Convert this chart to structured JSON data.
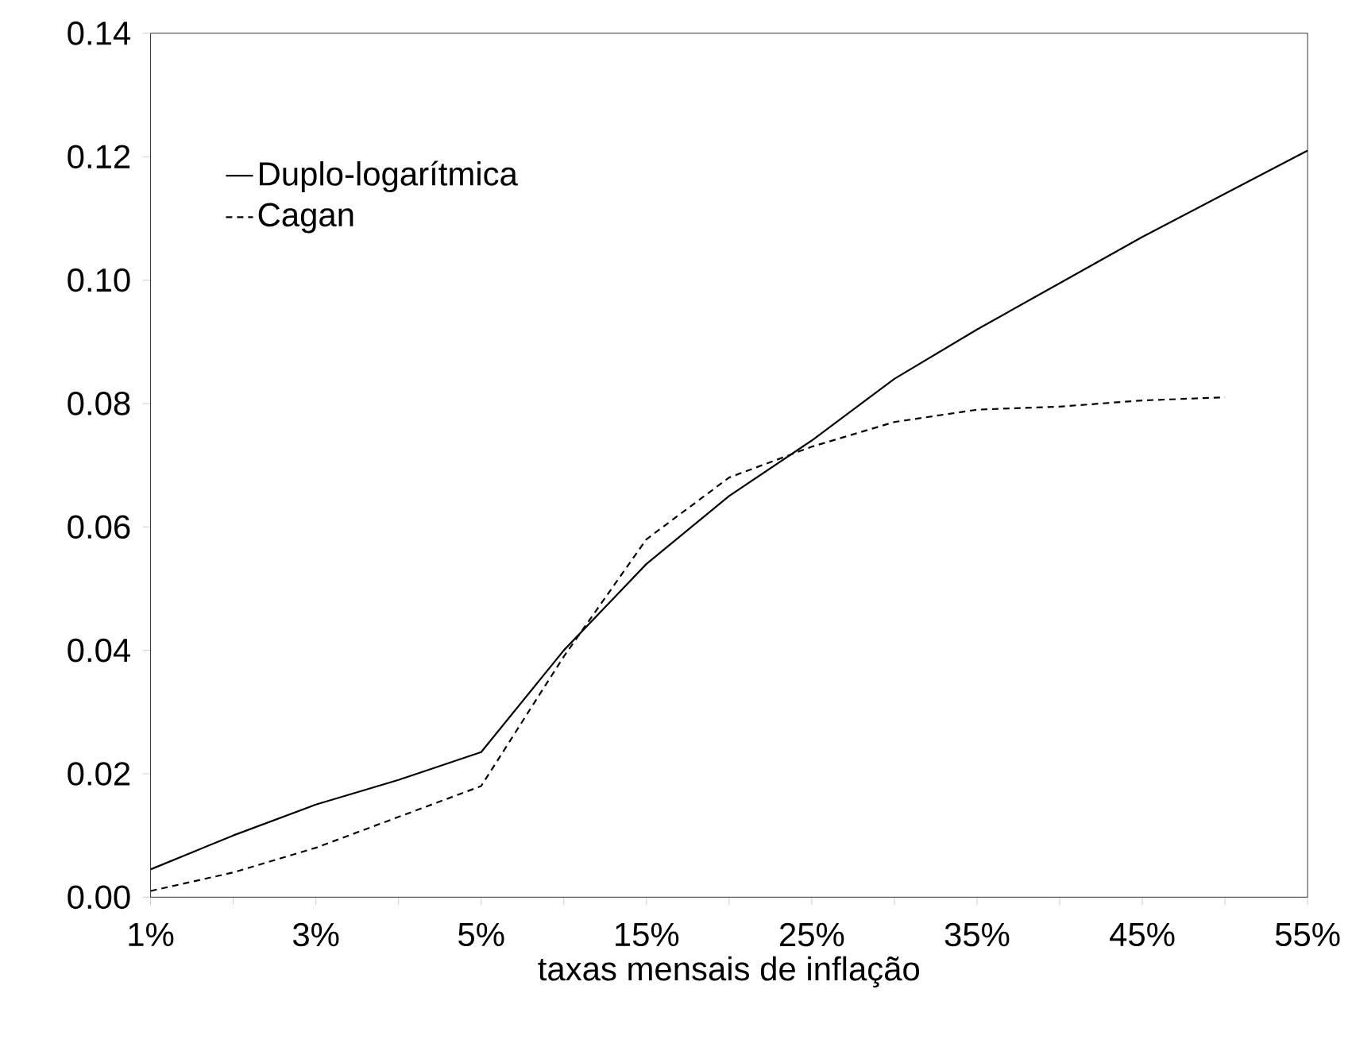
{
  "chart_data": {
    "type": "line",
    "xlabel": "taxas mensais de inflação",
    "categories": [
      "1%",
      null,
      "3%",
      null,
      "5%",
      null,
      "15%",
      null,
      "25%",
      null,
      "35%",
      null,
      "45%",
      null,
      "55%"
    ],
    "series": [
      {
        "name": "Duplo-logarítmica",
        "color": "#000000",
        "line_style": "solid",
        "values": [
          0.0045,
          0.01,
          0.015,
          0.019,
          0.0235,
          0.04,
          0.054,
          0.065,
          0.074,
          0.084,
          0.092,
          0.0995,
          0.107,
          0.114,
          0.121
        ]
      },
      {
        "name": "Cagan",
        "color": "#000000",
        "line_style": "dashed",
        "values": [
          0.001,
          0.004,
          0.008,
          0.013,
          0.018,
          0.039,
          0.058,
          0.068,
          0.073,
          0.077,
          0.079,
          0.0795,
          0.0805,
          0.081,
          null
        ]
      }
    ],
    "ylim": [
      0,
      0.14
    ],
    "yticks": [
      {
        "value": 0,
        "label": "0.00"
      },
      {
        "value": 0.02,
        "label": "0.02"
      },
      {
        "value": 0.04,
        "label": "0.04"
      },
      {
        "value": 0.06,
        "label": "0.06"
      },
      {
        "value": 0.08,
        "label": "0.08"
      },
      {
        "value": 0.1,
        "label": "0.10"
      },
      {
        "value": 0.12,
        "label": "0.12"
      },
      {
        "value": 0.14,
        "label": "0.14"
      }
    ],
    "legend": "top left",
    "grid": false
  }
}
